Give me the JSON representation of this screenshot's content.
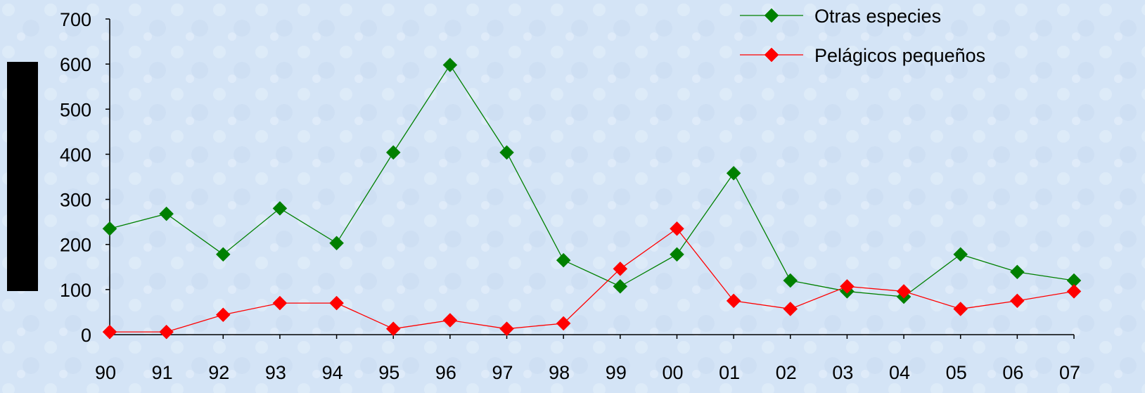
{
  "chart_data": {
    "type": "line",
    "categories": [
      "90",
      "91",
      "92",
      "93",
      "94",
      "95",
      "96",
      "97",
      "98",
      "99",
      "00",
      "01",
      "02",
      "03",
      "04",
      "05",
      "06",
      "07"
    ],
    "series": [
      {
        "name": "Otras especies",
        "color": "#008000",
        "values": [
          235,
          268,
          178,
          280,
          203,
          404,
          598,
          404,
          165,
          107,
          178,
          358,
          120,
          96,
          84,
          178,
          139,
          120
        ]
      },
      {
        "name": "Pelágicos pequeños",
        "color": "#ff0000",
        "values": [
          6,
          6,
          44,
          70,
          70,
          13,
          32,
          13,
          25,
          146,
          235,
          75,
          57,
          107,
          96,
          57,
          75,
          96
        ]
      }
    ],
    "title": "",
    "xlabel": "",
    "ylabel": "",
    "ylim": [
      0,
      700
    ],
    "yticks": [
      0,
      100,
      200,
      300,
      400,
      500,
      600,
      700
    ],
    "grid": false,
    "legend_position": "top-right"
  }
}
